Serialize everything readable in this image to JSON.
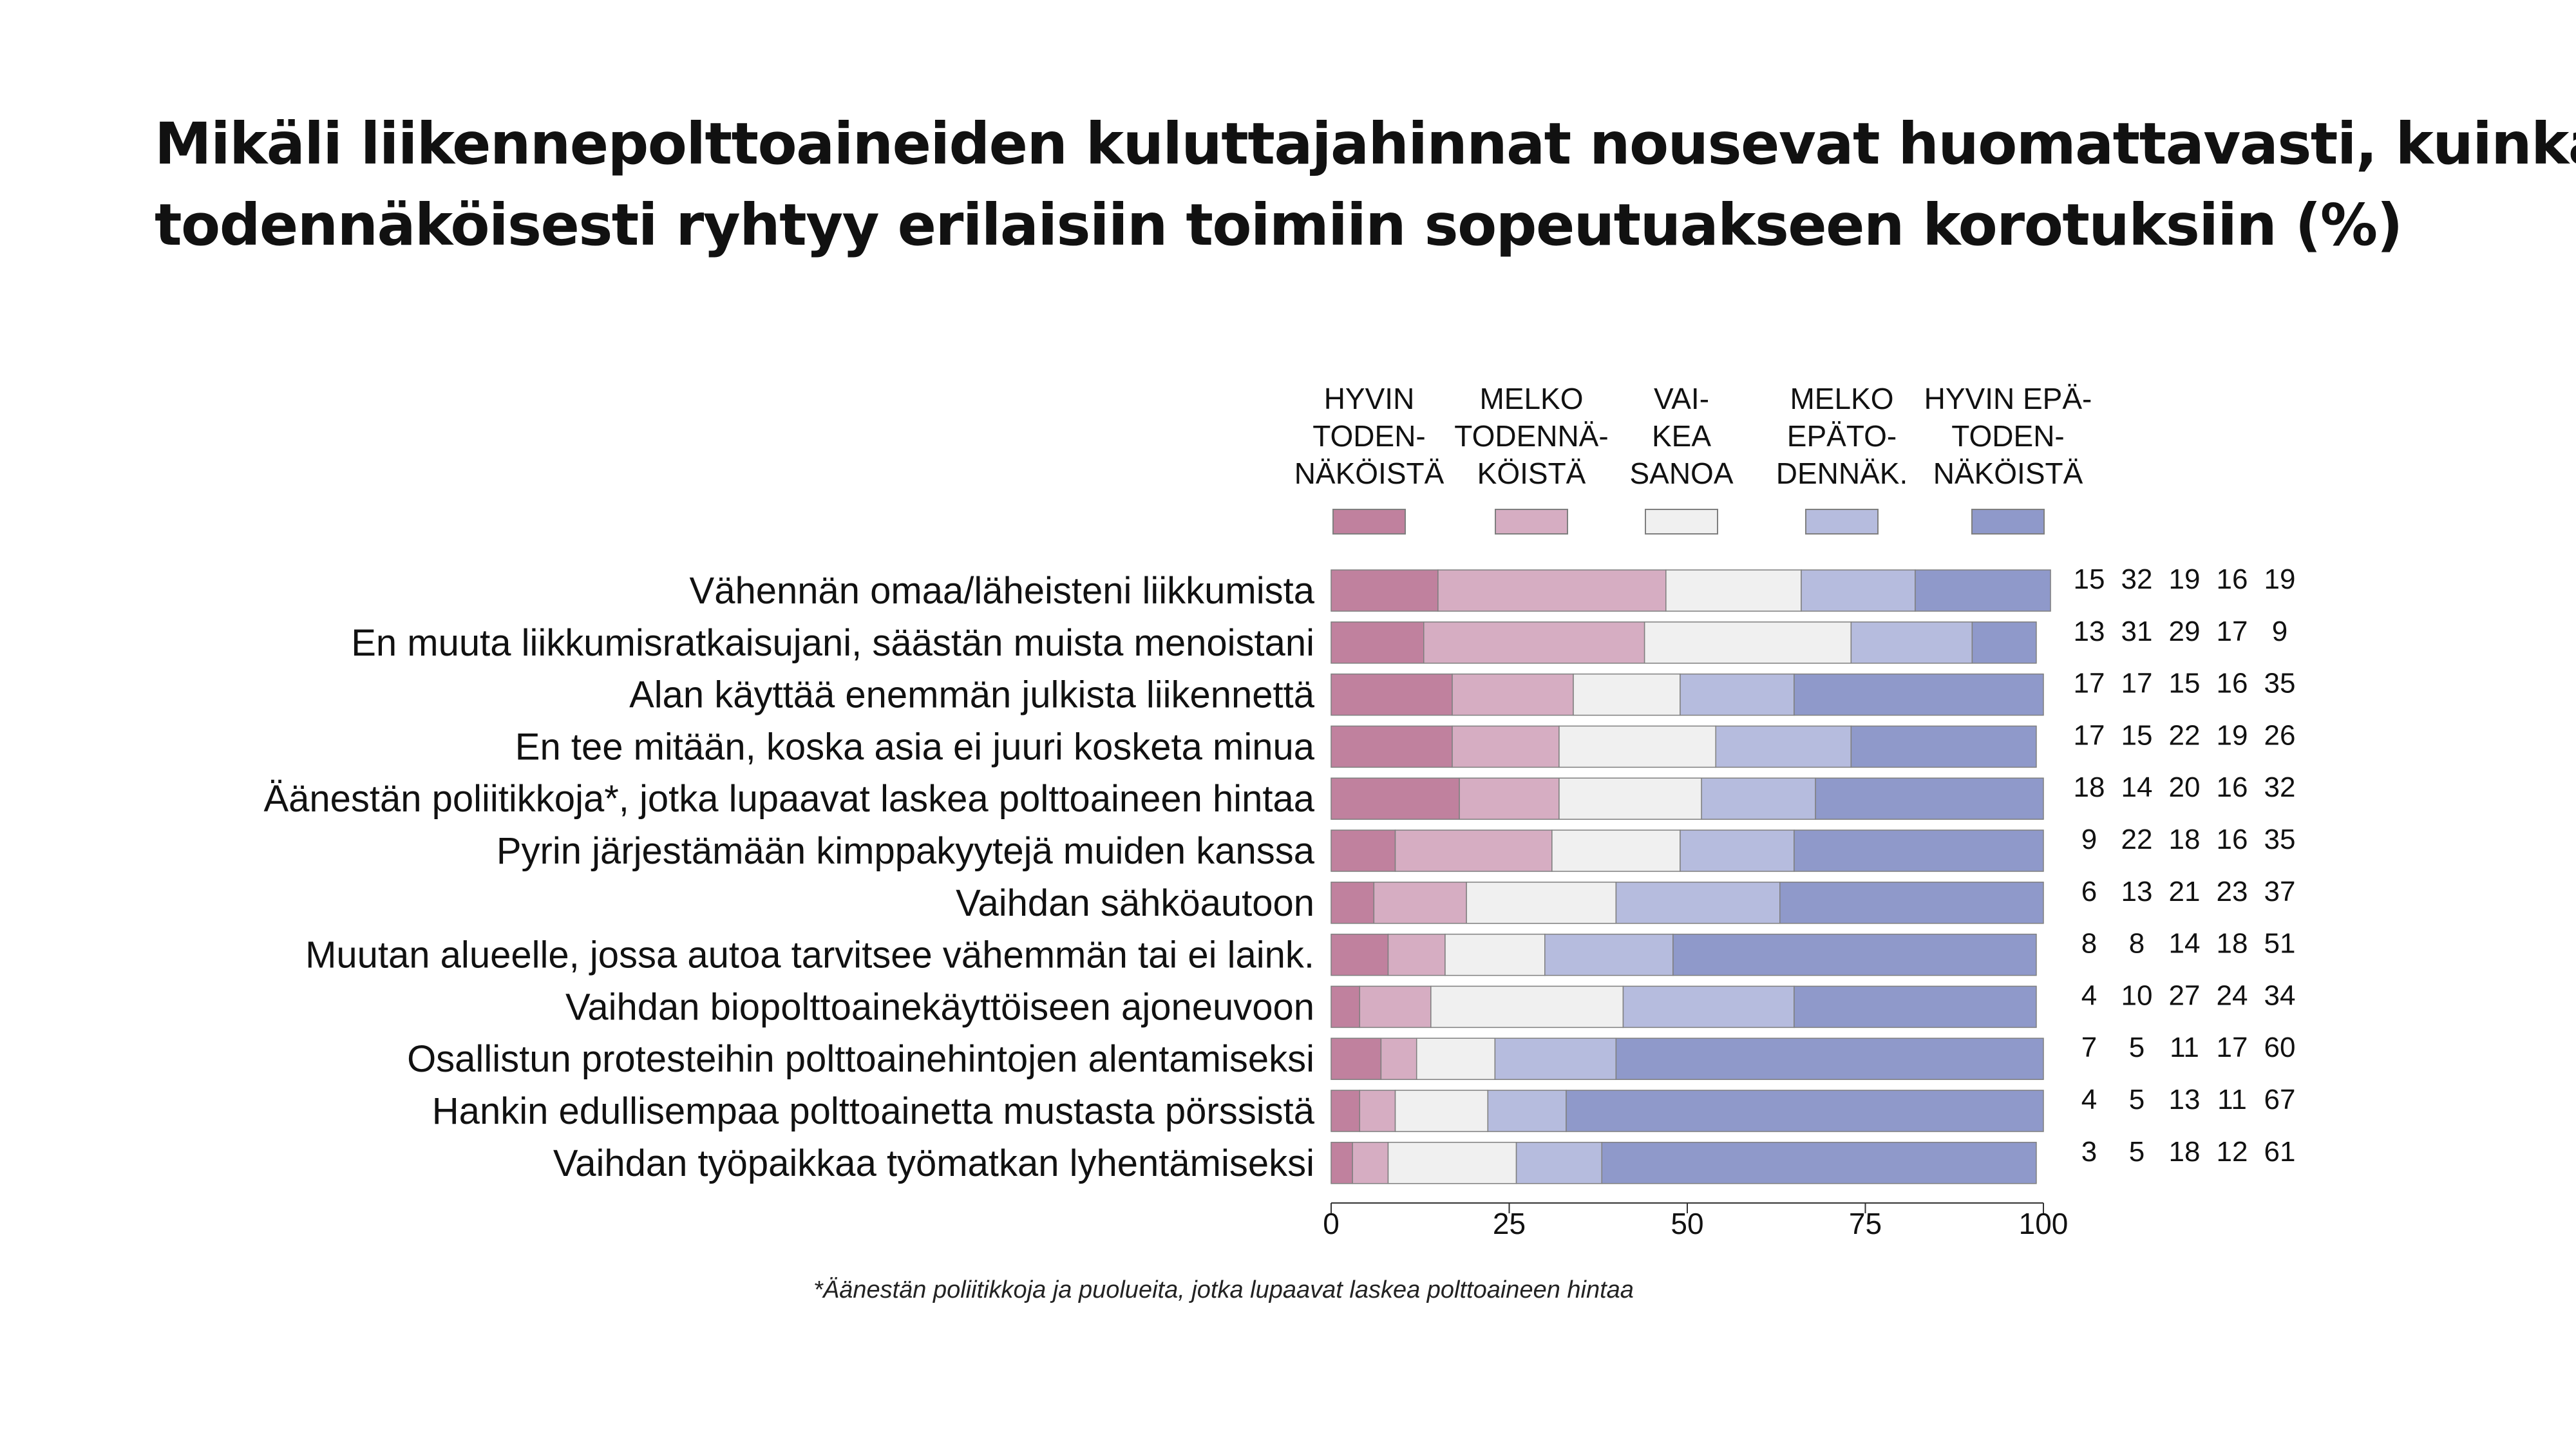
{
  "title_lines": [
    "Mikäli liikennepolttoaineiden kuluttajahinnat nousevat huomattavasti, kuinka",
    "todennäköisesti ryhtyy erilaisiin toimiin sopeutuakseen korotuksiin (%)"
  ],
  "footnote": "*Äänestän poliitikkoja ja puolueita, jotka lupaavat laskea polttoaineen hintaa",
  "colors": {
    "background": "#ffffff",
    "series": [
      "#c0819e",
      "#d6adc2",
      "#f0f0f0",
      "#b6bcde",
      "#8f99ca"
    ],
    "bar_border": "#7f7f7f",
    "text": "#111111"
  },
  "chart_data": {
    "type": "bar",
    "orientation": "horizontal",
    "stacked": true,
    "categories": [
      "Vähennän omaa/läheisteni liikkumista",
      "En muuta liikkumisratkaisujani, säästän muista menoistani",
      "Alan käyttää enemmän julkista liikennettä",
      "En tee mitään, koska asia ei juuri kosketa minua",
      "Äänestän poliitikkoja*, jotka lupaavat laskea polttoaineen hintaa",
      "Pyrin järjestämään kimppakyytejä muiden kanssa",
      "Vaihdan sähköautoon",
      "Muutan alueelle, jossa autoa tarvitsee vähemmän tai ei laink.",
      "Vaihdan biopolttoainekäyttöiseen ajoneuvoon",
      "Osallistun protesteihin polttoainehintojen alentamiseksi",
      "Hankin edullisempaa polttoainetta mustasta pörssistä",
      "Vaihdan työpaikkaa työmatkan lyhentämiseksi"
    ],
    "series": [
      {
        "name": [
          "HYVIN",
          "TODEN-",
          "NÄKÖISTÄ"
        ],
        "values": [
          15,
          13,
          17,
          17,
          18,
          9,
          6,
          8,
          4,
          7,
          4,
          3
        ]
      },
      {
        "name": [
          "MELKO",
          "TODENNÄ-",
          "KÖISTÄ"
        ],
        "values": [
          32,
          31,
          17,
          15,
          14,
          22,
          13,
          8,
          10,
          5,
          5,
          5
        ]
      },
      {
        "name": [
          "VAI-",
          "KEA",
          "SANOA"
        ],
        "values": [
          19,
          29,
          15,
          22,
          20,
          18,
          21,
          14,
          27,
          11,
          13,
          18
        ]
      },
      {
        "name": [
          "MELKO",
          "EPÄTO-",
          "DENNÄK."
        ],
        "values": [
          16,
          17,
          16,
          19,
          16,
          16,
          23,
          18,
          24,
          17,
          11,
          12
        ]
      },
      {
        "name": [
          "HYVIN EPÄ-",
          "TODEN-",
          "NÄKÖISTÄ"
        ],
        "values": [
          19,
          9,
          35,
          26,
          32,
          35,
          37,
          51,
          34,
          60,
          67,
          61
        ]
      }
    ],
    "xlim": [
      0,
      100
    ],
    "xticks": [
      0,
      25,
      50,
      75,
      100
    ],
    "grid": false,
    "legend_position": "top",
    "value_table": "right"
  }
}
